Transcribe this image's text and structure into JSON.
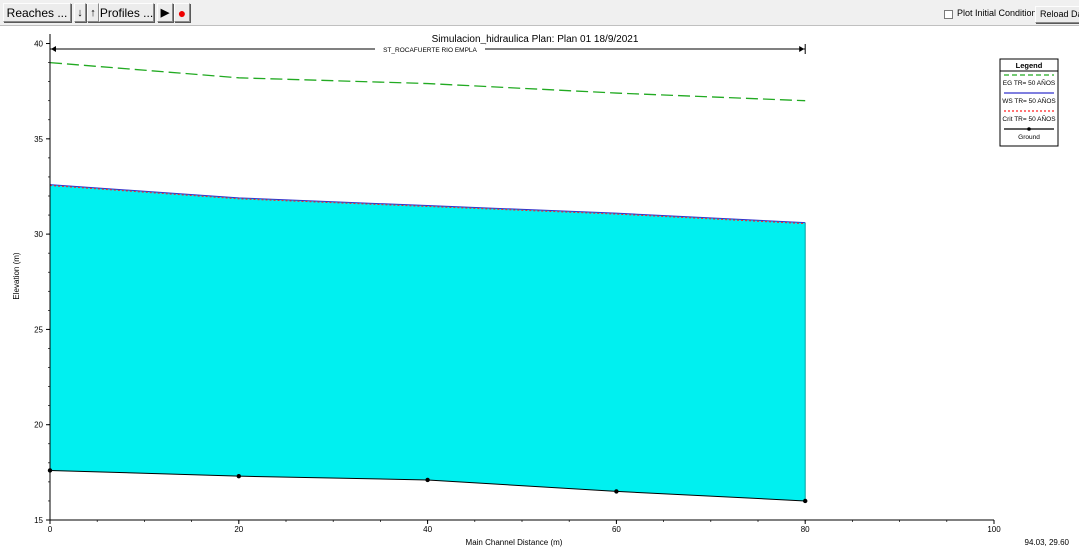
{
  "toolbar": {
    "reaches_label": "Reaches ...",
    "down_icon": "down-arrow-icon",
    "up_icon": "up-arrow-icon",
    "profiles_label": "Profiles ...",
    "play_icon": "play-icon",
    "record_icon": "record-icon",
    "plot_initial_label": "Plot Initial Conditions",
    "plot_initial_checked": false,
    "reload_label": "Reload Data"
  },
  "chart_data": {
    "type": "area",
    "title": "Simulacion_hidraulica      Plan: Plan 01    18/9/2021",
    "reach_label": "ST_ROCAFUERTE RIO EMPLA",
    "xlabel": "Main Channel Distance (m)",
    "ylabel": "Elevation (m)",
    "xlim": [
      0,
      100
    ],
    "ylim": [
      15,
      40.5
    ],
    "xticks": [
      "0",
      "20",
      "40",
      "60",
      "80",
      "100"
    ],
    "yticks": [
      "15",
      "20",
      "25",
      "30",
      "35",
      "40"
    ],
    "series": [
      {
        "name": "EG  TR= 50 AÑOS",
        "color": "#22aa22",
        "style": "dashed",
        "x": [
          0,
          20,
          40,
          60,
          80
        ],
        "values": [
          39.0,
          38.2,
          37.9,
          37.4,
          37.0
        ]
      },
      {
        "name": "WS  TR= 50 AÑOS",
        "color": "#3333cc",
        "style": "solid",
        "x": [
          0,
          20,
          40,
          60,
          80
        ],
        "values": [
          32.6,
          31.9,
          31.5,
          31.1,
          30.6
        ]
      },
      {
        "name": "Crit  TR= 50 AÑOS",
        "color": "#ff2222",
        "style": "dotted",
        "x": [
          0,
          20,
          40,
          60,
          80
        ],
        "values": [
          32.55,
          31.85,
          31.45,
          31.05,
          30.55
        ]
      },
      {
        "name": "Ground",
        "color": "#000000",
        "style": "solid-markers",
        "x": [
          0,
          20,
          40,
          60,
          80
        ],
        "values": [
          17.6,
          17.3,
          17.1,
          16.5,
          16.0
        ]
      }
    ],
    "water_fill": "#00f0f0",
    "legend_title": "Legend",
    "legend_position": "top-right",
    "grid": false
  },
  "status": {
    "coords": "94.03, 29.60"
  }
}
